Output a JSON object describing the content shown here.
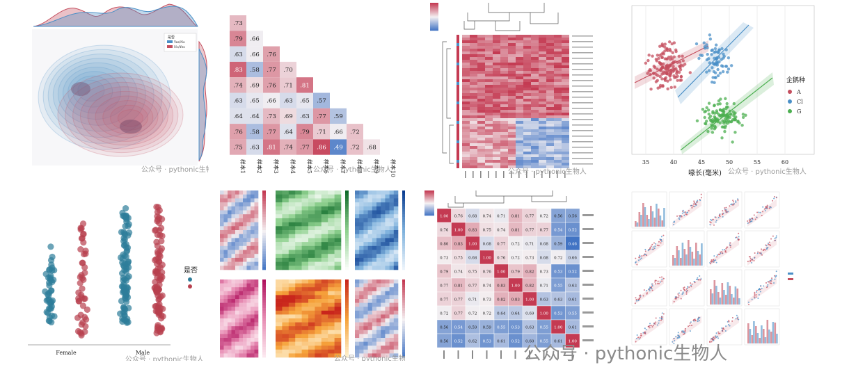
{
  "watermark": {
    "small": "公众号 · pythonic生物人",
    "big": "公众号 · pythonic生物人"
  },
  "colors": {
    "red": "#c44e5e",
    "blue": "#4a8fc7",
    "green": "#4caf50",
    "teal": "#2e7d9a"
  },
  "chart_data": [
    {
      "type": "area",
      "kind": "joint-kde",
      "legend_entries": [
        "是否",
        "Yes/No",
        "No/Yes"
      ],
      "legend_position": "top-right"
    },
    {
      "type": "heatmap",
      "kind": "lower-triangle-correlation",
      "col_labels": [
        "样本1",
        "样本2",
        "样本3",
        "样本4",
        "样本5",
        "样本6",
        "样本7",
        "样本8",
        "样本9",
        "样本10"
      ],
      "rows": [
        [
          0.73
        ],
        [
          0.79,
          0.66
        ],
        [
          0.63,
          0.66,
          0.76
        ],
        [
          0.83,
          0.58,
          0.77,
          0.7
        ],
        [
          0.74,
          0.69,
          0.76,
          0.71,
          0.81
        ],
        [
          0.63,
          0.65,
          0.66,
          0.63,
          0.65,
          0.57
        ],
        [
          0.64,
          0.64,
          0.73,
          0.69,
          0.63,
          0.77,
          0.59
        ],
        [
          0.76,
          0.58,
          0.77,
          0.64,
          0.79,
          0.71,
          0.66,
          0.72
        ],
        [
          0.75,
          0.63,
          0.81,
          0.74,
          0.77,
          0.86,
          0.49,
          0.72,
          0.68
        ]
      ]
    },
    {
      "type": "heatmap",
      "kind": "clustermap"
    },
    {
      "type": "scatter",
      "kind": "regression-scatter",
      "xlabel": "喙长(毫米)",
      "xticks": [
        35,
        40,
        45,
        50,
        55,
        60
      ],
      "legend_title": "企鹅种",
      "legend_entries": [
        "A",
        "Cl",
        "G"
      ],
      "legend_position": "right"
    },
    {
      "type": "scatter",
      "kind": "strip-plot",
      "categories": [
        "Female",
        "Male"
      ],
      "legend_title": "是否",
      "legend_position": "right"
    },
    {
      "type": "heatmap",
      "kind": "heatmap-grid-6"
    },
    {
      "type": "heatmap",
      "kind": "clustered-correlation",
      "rows": [
        [
          "1.00",
          "0.76",
          "0.68",
          "0.74",
          "0.71",
          "0.81",
          "0.77",
          "0.72",
          "0.56",
          "0.56"
        ],
        [
          "0.76",
          "1.00",
          "0.83",
          "0.75",
          "0.74",
          "0.81",
          "0.77",
          "0.77",
          "0.54",
          "0.52"
        ],
        [
          "0.80",
          "0.83",
          "1.00",
          "0.68",
          "0.77",
          "0.72",
          "0.71",
          "0.68",
          "0.59",
          "0.46"
        ],
        [
          "0.73",
          "0.75",
          "0.68",
          "1.00",
          "0.76",
          "0.72",
          "0.73",
          "0.68",
          "0.72",
          "0.66"
        ],
        [
          "0.79",
          "0.74",
          "0.75",
          "0.76",
          "1.00",
          "0.79",
          "0.82",
          "0.73",
          "0.53",
          "0.52"
        ],
        [
          "0.77",
          "0.81",
          "0.77",
          "0.74",
          "0.83",
          "1.00",
          "0.82",
          "0.71",
          "0.55",
          "0.63"
        ],
        [
          "0.77",
          "0.77",
          "0.71",
          "0.73",
          "0.82",
          "0.83",
          "1.00",
          "0.63",
          "0.63",
          "0.61"
        ],
        [
          "0.72",
          "0.77",
          "0.72",
          "0.72",
          "0.64",
          "0.64",
          "0.69",
          "1.00",
          "0.53",
          "0.55"
        ],
        [
          "0.56",
          "0.54",
          "0.59",
          "0.59",
          "0.55",
          "0.53",
          "0.63",
          "0.55",
          "1.00",
          "0.61"
        ],
        [
          "0.56",
          "0.52",
          "0.62",
          "0.53",
          "0.61",
          "0.52",
          "0.60",
          "0.55",
          "0.61",
          "1.00"
        ]
      ]
    },
    {
      "type": "scatter",
      "kind": "pair-grid"
    }
  ]
}
